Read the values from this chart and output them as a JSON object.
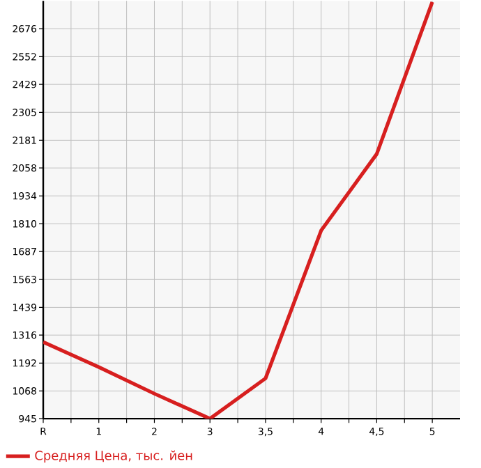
{
  "chart_data": {
    "type": "line",
    "categories": [
      "R",
      "1",
      "2",
      "3",
      "3,5",
      "4",
      "4,5",
      "5"
    ],
    "series": [
      {
        "name": "Средняя Цена, тыс. йен",
        "color": "#d71f1f",
        "values": [
          1285,
          1174,
          1056,
          945,
          1124,
          1780,
          2120,
          2795
        ]
      }
    ],
    "ylim": [
      945,
      2800
    ],
    "yticks": [
      945,
      1068,
      1192,
      1316,
      1439,
      1563,
      1687,
      1810,
      1934,
      2058,
      2181,
      2305,
      2429,
      2552,
      2676
    ],
    "grid": true,
    "legend": "bottom",
    "marker": "none",
    "line_style": "solid"
  }
}
